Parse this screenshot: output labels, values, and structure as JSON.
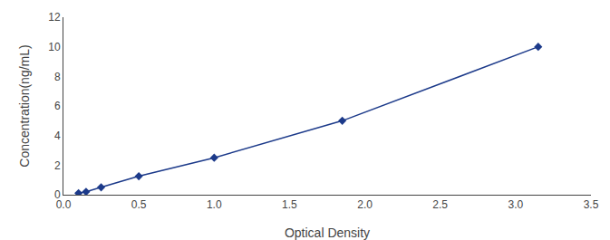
{
  "chart_data": {
    "type": "line",
    "xlabel": "Optical Density",
    "ylabel": "Concentration(ng/mL)",
    "x": [
      0.1,
      0.15,
      0.25,
      0.5,
      1.0,
      1.85,
      3.15
    ],
    "values": [
      0.1,
      0.2,
      0.5,
      1.25,
      2.5,
      5.0,
      10.0
    ],
    "color": "#1C3A8A",
    "marker": "diamond",
    "xlim": [
      0,
      3.5
    ],
    "ylim": [
      0,
      12
    ],
    "xticks": [
      {
        "value": 0,
        "label": "0.0"
      },
      0.5,
      {
        "value": 1.0,
        "label": "1.0"
      },
      1.5,
      {
        "value": 2.0,
        "label": "2.0"
      },
      2.5,
      {
        "value": 3.0,
        "label": "3.0"
      },
      3.5
    ],
    "yticks": [
      0,
      2,
      4,
      6,
      8,
      10,
      12
    ],
    "grid": false
  }
}
